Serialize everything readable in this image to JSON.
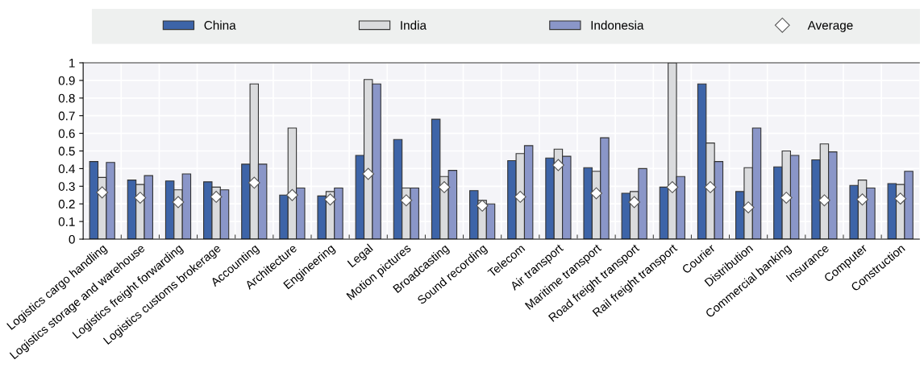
{
  "chart_data": {
    "type": "bar",
    "categories": [
      "Logistics cargo handling",
      "Logistics storage and warehouse",
      "Logistics freight forwarding",
      "Logistics customs brokerage",
      "Accounting",
      "Architecture",
      "Engineering",
      "Legal",
      "Motion pictures",
      "Broadcasting",
      "Sound recording",
      "Telecom",
      "Air transport",
      "Maritime transport",
      "Road freight transport",
      "Rail freight transport",
      "Courier",
      "Distribution",
      "Commercial banking",
      "Insurance",
      "Computer",
      "Construction"
    ],
    "series": [
      {
        "name": "China",
        "color": "#3d64a8",
        "values": [
          0.44,
          0.335,
          0.33,
          0.325,
          0.425,
          0.25,
          0.245,
          0.475,
          0.565,
          0.68,
          0.275,
          0.445,
          0.46,
          0.405,
          0.26,
          0.295,
          0.88,
          0.27,
          0.41,
          0.45,
          0.305,
          0.315
        ]
      },
      {
        "name": "India",
        "color": "#dadbdd",
        "values": [
          0.35,
          0.31,
          0.28,
          0.295,
          0.88,
          0.63,
          0.27,
          0.905,
          0.29,
          0.355,
          0.22,
          0.485,
          0.51,
          0.385,
          0.27,
          1.0,
          0.545,
          0.405,
          0.5,
          0.54,
          0.335,
          0.31
        ]
      },
      {
        "name": "Indonesia",
        "color": "#8a96c8",
        "values": [
          0.435,
          0.36,
          0.37,
          0.28,
          0.425,
          0.29,
          0.29,
          0.88,
          0.29,
          0.39,
          0.2,
          0.53,
          0.47,
          0.575,
          0.4,
          0.355,
          0.44,
          0.63,
          0.475,
          0.495,
          0.29,
          0.385
        ]
      },
      {
        "name": "Average",
        "type": "scatter",
        "marker": "diamond",
        "color": "#ffffff",
        "values": [
          0.265,
          0.235,
          0.21,
          0.24,
          0.32,
          0.25,
          0.225,
          0.37,
          0.22,
          0.295,
          0.19,
          0.24,
          0.42,
          0.26,
          0.21,
          0.295,
          0.295,
          0.18,
          0.235,
          0.22,
          0.225,
          0.23
        ]
      }
    ],
    "ylim": [
      0,
      1
    ],
    "yticks": [
      0,
      {
        "value": 0.1,
        "label": "0.1"
      },
      {
        "value": 0.2,
        "label": "0.2"
      },
      {
        "value": 0.3,
        "label": "0.3"
      },
      {
        "value": 0.4,
        "label": "0.4"
      },
      {
        "value": 0.5,
        "label": "0.5"
      },
      {
        "value": 0.6,
        "label": "0.6"
      },
      {
        "value": 0.7,
        "label": "0.7"
      },
      {
        "value": 0.8,
        "label": "0.8"
      },
      {
        "value": 0.9,
        "label": "0.9"
      },
      1
    ],
    "grid": true,
    "legend": "top"
  }
}
